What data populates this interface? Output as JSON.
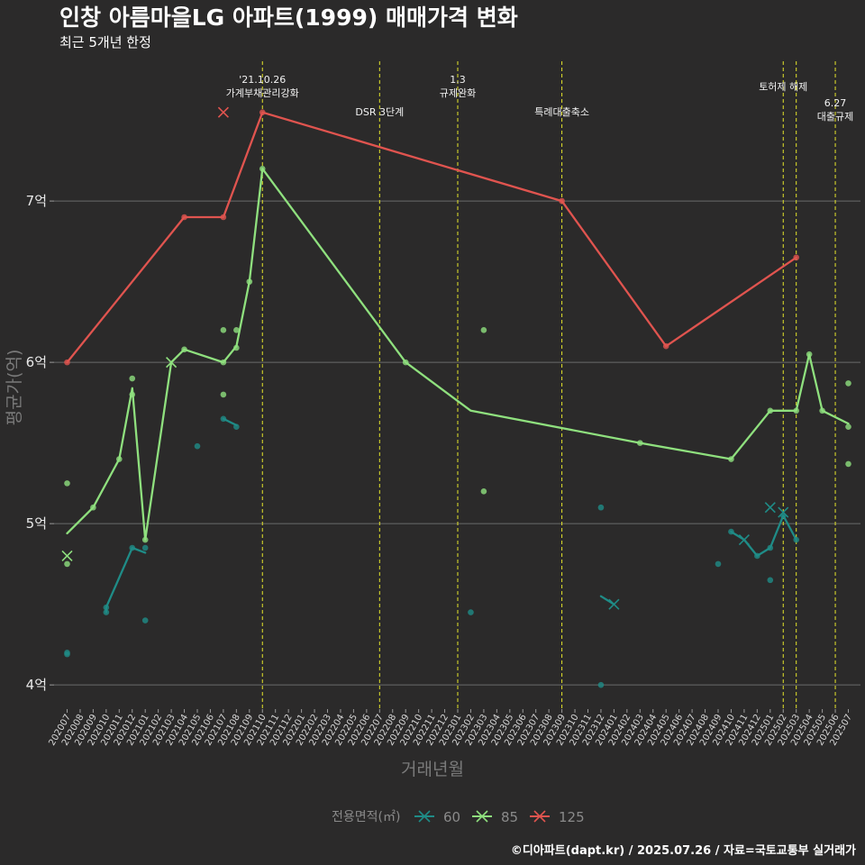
{
  "chart_data": {
    "type": "line",
    "title": "인창 아름마을LG 아파트(1999) 매매가격 변화",
    "subtitle": "최근 5개년 한정",
    "xlabel": "거래년월",
    "ylabel": "평균가(억)",
    "caption": "©디아파트(dapt.kr) / 2025.07.26 / 자료=국토교통부 실거래가",
    "ylim": [
      3.85,
      7.9
    ],
    "y_ticks": [
      {
        "value": 4,
        "label": "4억"
      },
      {
        "value": 5,
        "label": "5억"
      },
      {
        "value": 6,
        "label": "6억"
      },
      {
        "value": 7,
        "label": "7억"
      }
    ],
    "x_categories": [
      "202007",
      "202008",
      "202009",
      "202010",
      "202011",
      "202012",
      "202101",
      "202102",
      "202103",
      "202104",
      "202105",
      "202106",
      "202107",
      "202108",
      "202109",
      "202110",
      "202111",
      "202112",
      "202201",
      "202202",
      "202203",
      "202204",
      "202205",
      "202206",
      "202207",
      "202208",
      "202209",
      "202210",
      "202211",
      "202212",
      "202301",
      "202302",
      "202303",
      "202304",
      "202305",
      "202306",
      "202307",
      "202308",
      "202309",
      "202310",
      "202311",
      "202312",
      "202401",
      "202402",
      "202403",
      "202404",
      "202405",
      "202406",
      "202407",
      "202408",
      "202409",
      "202410",
      "202411",
      "202412",
      "202501",
      "202502",
      "202503",
      "202504",
      "202505",
      "202506",
      "202507"
    ],
    "grid": true,
    "legend": {
      "title": "전용면적(㎡)",
      "position": "bottom",
      "items": [
        {
          "label": "60",
          "color": "#1f8c87"
        },
        {
          "label": "85",
          "color": "#8fe07e"
        },
        {
          "label": "125",
          "color": "#e0544f"
        }
      ]
    },
    "events": [
      {
        "x": "202110",
        "lines": [
          "'21.10.26",
          "가계부채관리강화"
        ],
        "level": 0
      },
      {
        "x": "202207",
        "lines": [
          "DSR 3단계"
        ],
        "level": 2
      },
      {
        "x": "202301",
        "lines": [
          "1.3",
          "규제완화"
        ],
        "level": 0
      },
      {
        "x": "202309",
        "lines": [
          "특례대출축소"
        ],
        "level": 2
      },
      {
        "x": "202502",
        "lines": [
          "토허제 해제"
        ],
        "level": 1
      },
      {
        "x": "202503",
        "lines": [],
        "level": 0
      },
      {
        "x": "202506",
        "lines": [
          "6.27",
          "대출규제"
        ],
        "level": 3
      }
    ],
    "series": [
      {
        "name": "60",
        "color": "#1f8c87",
        "line": [
          [
            "202010",
            4.45
          ],
          [
            "202010",
            4.48
          ],
          [
            "202012",
            4.85
          ],
          [
            "202101",
            4.82
          ],
          null,
          [
            "202107",
            5.65
          ],
          [
            "202108",
            5.61
          ],
          null,
          [
            "202312",
            4.55
          ],
          [
            "202401",
            4.5
          ],
          null,
          [
            "202410",
            4.95
          ],
          [
            "202411",
            4.9
          ],
          [
            "202412",
            4.8
          ],
          [
            "202501",
            4.85
          ],
          [
            "202502",
            5.05
          ],
          [
            "202503",
            4.9
          ]
        ],
        "points": [
          [
            "202007",
            4.19
          ],
          [
            "202007",
            4.2
          ],
          [
            "202010",
            4.45
          ],
          [
            "202010",
            4.48
          ],
          [
            "202012",
            4.85
          ],
          [
            "202101",
            4.85
          ],
          [
            "202101",
            4.4
          ],
          [
            "202105",
            5.48
          ],
          [
            "202107",
            5.65
          ],
          [
            "202108",
            5.6
          ],
          [
            "202302",
            4.45
          ],
          [
            "202312",
            5.1
          ],
          [
            "202312",
            4.0
          ],
          [
            "202409",
            4.75
          ],
          [
            "202410",
            4.95
          ],
          [
            "202412",
            4.8
          ],
          [
            "202501",
            4.85
          ],
          [
            "202501",
            4.65
          ],
          [
            "202502",
            5.05
          ],
          [
            "202503",
            4.9
          ]
        ],
        "crosses": [
          [
            "202401",
            4.5
          ],
          [
            "202411",
            4.9
          ],
          [
            "202501",
            5.1
          ],
          [
            "202502",
            5.07
          ]
        ]
      },
      {
        "name": "85",
        "color": "#8fe07e",
        "line": [
          [
            "202007",
            4.94
          ],
          [
            "202009",
            5.1
          ],
          [
            "202011",
            5.4
          ],
          [
            "202012",
            5.84
          ],
          [
            "202101",
            4.9
          ],
          [
            "202103",
            6.0
          ],
          [
            "202104",
            6.08
          ],
          [
            "202107",
            6.0
          ],
          [
            "202108",
            6.1
          ],
          [
            "202109",
            6.5
          ],
          [
            "202110",
            7.2
          ],
          [
            "202209",
            6.0
          ],
          [
            "202302",
            5.7
          ],
          [
            "202403",
            5.5
          ],
          [
            "202410",
            5.4
          ],
          [
            "202501",
            5.7
          ],
          [
            "202503",
            5.7
          ],
          [
            "202504",
            6.05
          ],
          [
            "202505",
            5.7
          ],
          [
            "202507",
            5.62
          ]
        ],
        "points": [
          [
            "202007",
            5.25
          ],
          [
            "202007",
            4.75
          ],
          [
            "202009",
            5.1
          ],
          [
            "202011",
            5.4
          ],
          [
            "202012",
            5.9
          ],
          [
            "202012",
            5.8
          ],
          [
            "202101",
            4.9
          ],
          [
            "202104",
            6.08
          ],
          [
            "202107",
            6.2
          ],
          [
            "202107",
            5.8
          ],
          [
            "202107",
            6.0
          ],
          [
            "202108",
            6.2
          ],
          [
            "202108",
            6.09
          ],
          [
            "202109",
            6.5
          ],
          [
            "202110",
            7.2
          ],
          [
            "202209",
            6.0
          ],
          [
            "202303",
            6.2
          ],
          [
            "202303",
            5.2
          ],
          [
            "202403",
            5.5
          ],
          [
            "202410",
            5.4
          ],
          [
            "202501",
            5.7
          ],
          [
            "202503",
            5.7
          ],
          [
            "202504",
            6.05
          ],
          [
            "202505",
            5.7
          ],
          [
            "202507",
            5.87
          ],
          [
            "202507",
            5.6
          ],
          [
            "202507",
            5.37
          ]
        ],
        "crosses": [
          [
            "202007",
            4.8
          ],
          [
            "202103",
            6.0
          ]
        ]
      },
      {
        "name": "125",
        "color": "#e0544f",
        "line": [
          [
            "202007",
            6.0
          ],
          [
            "202104",
            6.9
          ],
          [
            "202107",
            6.9
          ],
          [
            "202110",
            7.55
          ],
          [
            "202309",
            7.0
          ],
          [
            "202405",
            6.1
          ],
          [
            "202503",
            6.65
          ]
        ],
        "points": [
          [
            "202007",
            6.0
          ],
          [
            "202104",
            6.9
          ],
          [
            "202107",
            6.9
          ],
          [
            "202110",
            7.55
          ],
          [
            "202309",
            7.0
          ],
          [
            "202405",
            6.1
          ],
          [
            "202503",
            6.65
          ]
        ],
        "crosses": [
          [
            "202107",
            7.55
          ]
        ]
      }
    ]
  }
}
